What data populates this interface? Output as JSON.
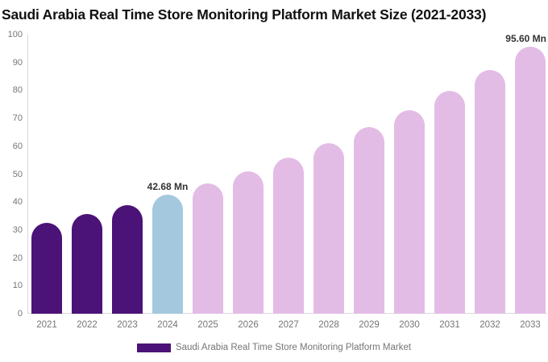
{
  "chart": {
    "title": "Saudi Arabia Real Time Store Monitoring Platform Market Size (2021-2033)"
  },
  "legend": {
    "label": "Saudi Arabia Real Time Store Monitoring Platform Market",
    "swatch_color": "#4B1377",
    "position": "bottom-center"
  },
  "chart_data": {
    "type": "bar",
    "title": "Saudi Arabia Real Time Store Monitoring Platform Market Size (2021-2033)",
    "xlabel": "",
    "ylabel": "",
    "ylim": [
      0,
      100
    ],
    "yticks": [
      0,
      10,
      20,
      30,
      40,
      50,
      60,
      70,
      80,
      90,
      100
    ],
    "grid": false,
    "categories": [
      "2021",
      "2022",
      "2023",
      "2024",
      "2025",
      "2026",
      "2027",
      "2028",
      "2029",
      "2030",
      "2031",
      "2032",
      "2033"
    ],
    "values": [
      32.5,
      35.6,
      39.0,
      42.68,
      46.7,
      51.0,
      55.8,
      61.0,
      66.8,
      73.0,
      79.9,
      87.4,
      95.6
    ],
    "point_color_keys": [
      "historical",
      "historical",
      "historical",
      "current",
      "forecast",
      "forecast",
      "forecast",
      "forecast",
      "forecast",
      "forecast",
      "forecast",
      "forecast",
      "forecast"
    ],
    "colors": {
      "historical": "#4B1377",
      "current": "#A4C9DE",
      "forecast": "#E3BCE6"
    },
    "annotations": [
      {
        "category": "2024",
        "label": "42.68 Mn"
      },
      {
        "category": "2033",
        "label": "95.60 Mn"
      }
    ],
    "legend_entries": [
      "Saudi Arabia Real Time Store Monitoring Platform Market"
    ]
  }
}
